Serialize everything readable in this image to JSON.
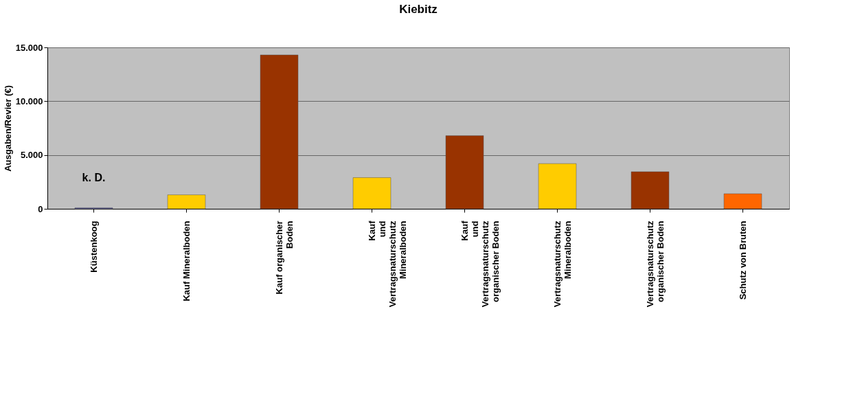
{
  "chart_data": {
    "type": "bar",
    "title": "Kiebitz",
    "ylabel": "Ausgaben/Revier (€)",
    "categories": [
      "Küstenkoog",
      "Kauf Mineralboden",
      "Kauf organischer\nBoden",
      "Kauf\nund\nVertragsnaturschutz\nMineralboden",
      "Kauf\nund\nVertragsnaturschutz\norganischer Boden",
      "Vertragsnaturschutz\nMineralboden",
      "Vertragsnaturschutz\norganischer Boden",
      "Schutz von Bruten"
    ],
    "values": [
      100,
      1300,
      14300,
      2900,
      6800,
      4200,
      3450,
      1400
    ],
    "colors": [
      "#6a6aa8",
      "#ffcc00",
      "#993300",
      "#ffcc00",
      "#993300",
      "#ffcc00",
      "#993300",
      "#ff6600"
    ],
    "ylim": [
      0,
      15000
    ],
    "yticks": [
      {
        "value": 0,
        "label": "0"
      },
      {
        "value": 5000,
        "label": "5.000"
      },
      {
        "value": 10000,
        "label": "10.000"
      },
      {
        "value": 15000,
        "label": "15.000"
      }
    ],
    "grid": "y",
    "legend": false,
    "annotations": [
      "k. D."
    ]
  }
}
